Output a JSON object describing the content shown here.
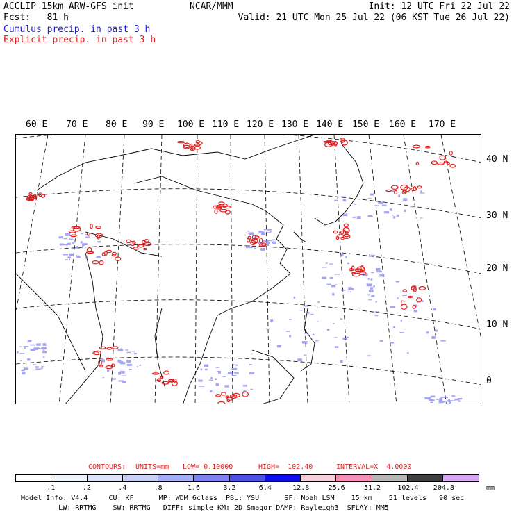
{
  "header": {
    "left_line1": "ACCLIP 15km ARW-GFS init",
    "left_line2": "Fcst:   81 h",
    "center": "NCAR/MMM",
    "right_line1": "Init: 12 UTC Fri 22 Jul 22",
    "right_line2": "Valid: 21 UTC Mon 25 Jul 22 (06 KST Tue 26 Jul 22)",
    "legend_cumulus": "Cumulus precip. in past 3 h",
    "legend_explicit": "Explicit precip. in past 3 h"
  },
  "colors": {
    "cumulus": "#1a1ad0",
    "explicit": "#e02020",
    "coast": "#000000",
    "gridline": "#000000"
  },
  "map": {
    "lon_labels": [
      "60 E",
      "70 E",
      "80 E",
      "90 E",
      "100 E",
      "110 E",
      "120 E",
      "130 E",
      "140 E",
      "150 E",
      "160 E",
      "170 E"
    ],
    "lat_labels": [
      "40 N",
      "30 N",
      "20 N",
      "10 N",
      "0"
    ]
  },
  "contours": {
    "text_prefix": "CONTOURS:",
    "units": "UNITS=mm",
    "low": "LOW= 0.10000",
    "high": "HIGH=  102.40",
    "interval": "INTERVAL=X  4.0000"
  },
  "colorbar": {
    "labels": [
      ".1",
      ".2",
      ".4",
      ".8",
      "1.6",
      "3.2",
      "6.4",
      "12.8",
      "25.6",
      "51.2",
      "102.4",
      "204.8"
    ],
    "unit": "mm",
    "colors": [
      "#ffffff",
      "#eef2fb",
      "#dde4f7",
      "#c8d0f5",
      "#a8b0f5",
      "#8080f0",
      "#5050e8",
      "#1010ee",
      "#f5d0d8",
      "#f590b8",
      "#b8b8b8",
      "#404040",
      "#d8a8f0"
    ]
  },
  "footer": {
    "line1": "Model Info: V4.4     CU: KF      MP: WDM 6class  PBL: YSU      SF: Noah LSM    15 km    51 levels   90 sec",
    "line2": "         LW: RRTMG    SW: RRTMG   DIFF: simple KM: 2D Smagor DAMP: Rayleigh3  SFLAY: MM5"
  }
}
